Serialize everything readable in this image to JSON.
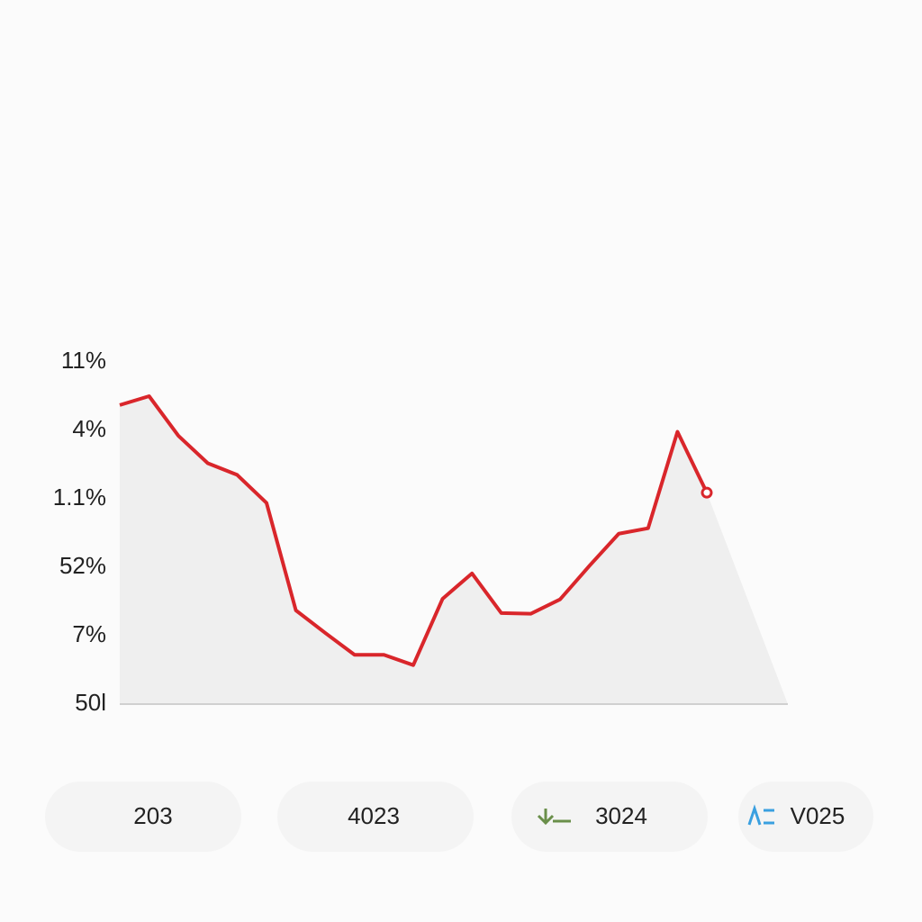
{
  "chart_data": {
    "type": "line",
    "categories": [
      null,
      null,
      null,
      null,
      null,
      null,
      null,
      null,
      null,
      null,
      null,
      null,
      null,
      null,
      null,
      null,
      null,
      null,
      null,
      null,
      null
    ],
    "series": [
      {
        "color": "#d9262b",
        "values": [
          4.37,
          4.5,
          3.92,
          3.52,
          3.35,
          2.94,
          1.37,
          1.04,
          0.72,
          0.72,
          0.57,
          1.54,
          1.91,
          1.33,
          1.32,
          1.53,
          2.02,
          2.49,
          2.57,
          3.98,
          3.09
        ]
      }
    ],
    "ylim": [
      0,
      5
    ],
    "yticks": [
      {
        "value": 0,
        "label": "50l"
      },
      {
        "value": 1,
        "label": "7%"
      },
      {
        "value": 2,
        "label": "52%"
      },
      {
        "value": 3,
        "label": "1.1%"
      },
      {
        "value": 4,
        "label": "4%"
      },
      {
        "value": 5,
        "label": "11%"
      }
    ],
    "area_color": "#efefef"
  },
  "buttons": [
    "203",
    "4023",
    "3024",
    "V025"
  ]
}
